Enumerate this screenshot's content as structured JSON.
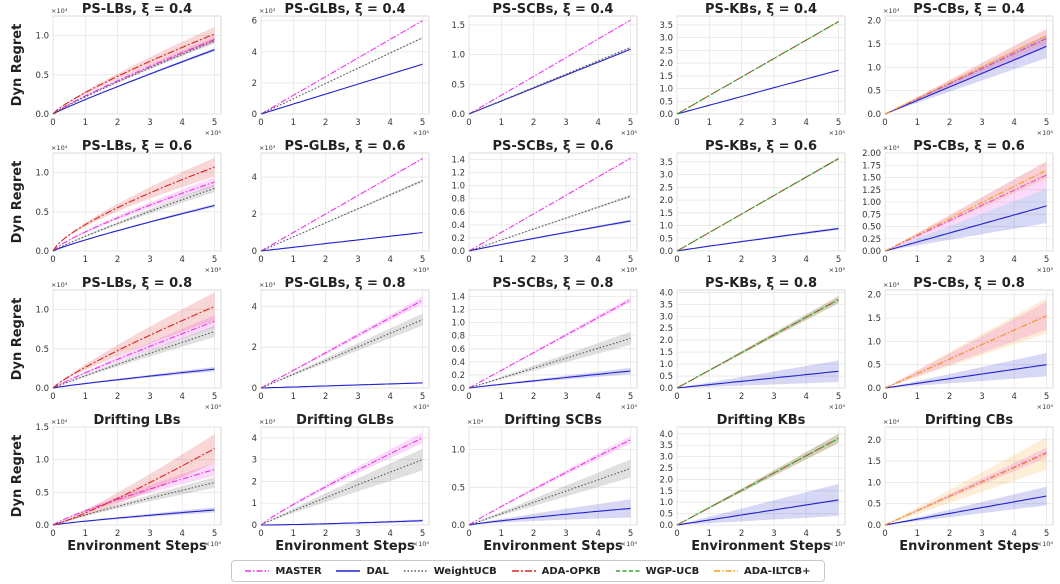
{
  "figure": {
    "row_ylabel": "Dyn Regret",
    "col_xlabel": "Environment Steps",
    "x_multiplier": "×10⁴"
  },
  "legend": [
    {
      "name": "MASTER",
      "color": "#ee33ee",
      "dash": "6,2,1.5,2"
    },
    {
      "name": "DAL",
      "color": "#2222cc",
      "dash": ""
    },
    {
      "name": "WeightUCB",
      "color": "#555555",
      "dash": "1.5,2"
    },
    {
      "name": "ADA-OPKB",
      "color": "#dd2222",
      "dash": "7,2,2,2"
    },
    {
      "name": "WGP-UCB",
      "color": "#33aa33",
      "dash": "4,2.5"
    },
    {
      "name": "ADA-ILTCB+",
      "color": "#f5a020",
      "dash": "6,2,1.5,2"
    }
  ],
  "chart_data": [
    {
      "type": "line",
      "title": "PS-LBs, ξ = 0.4",
      "ymult": "×10⁴",
      "ylim": [
        0,
        1.25
      ],
      "yticks": [
        "0.0",
        "0.5",
        "1.0"
      ],
      "ytickvals": [
        0,
        0.5,
        1.0
      ],
      "xlim": [
        0,
        5.2
      ],
      "xticks": [
        "0",
        "1",
        "2",
        "3",
        "4",
        "5"
      ],
      "series": [
        {
          "name": "MASTER",
          "shape": 0.88,
          "end": 0.95,
          "band": 0.04
        },
        {
          "name": "DAL",
          "shape": 0.93,
          "end": 0.82,
          "band": 0.02
        },
        {
          "name": "WeightUCB",
          "shape": 0.9,
          "end": 0.93,
          "band": 0.03
        },
        {
          "name": "ADA-OPKB",
          "shape": 0.82,
          "end": 1.02,
          "band": 0.09
        }
      ]
    },
    {
      "type": "line",
      "title": "PS-GLBs, ξ = 0.4",
      "ymult": "×10³",
      "ylim": [
        0,
        6.3
      ],
      "yticks": [
        "0",
        "2",
        "4",
        "6"
      ],
      "ytickvals": [
        0,
        2,
        4,
        6
      ],
      "xlim": [
        0,
        5.2
      ],
      "xticks": [
        "0",
        "1",
        "2",
        "3",
        "4",
        "5"
      ],
      "series": [
        {
          "name": "MASTER",
          "shape": 1.0,
          "end": 6.0,
          "band": 0.04
        },
        {
          "name": "DAL",
          "shape": 1.0,
          "end": 3.2,
          "band": 0.03
        },
        {
          "name": "WeightUCB",
          "shape": 1.0,
          "end": 4.9,
          "band": 0.05
        }
      ]
    },
    {
      "type": "line",
      "title": "PS-SCBs, ξ = 0.4",
      "ymult": "",
      "ylim": [
        0,
        1.65
      ],
      "yticks": [
        "0.0",
        "0.5",
        "1.0",
        "1.5"
      ],
      "ytickvals": [
        0,
        0.5,
        1.0,
        1.5
      ],
      "xlim": [
        0,
        5.2
      ],
      "xticks": [
        "0",
        "1",
        "2",
        "3",
        "4",
        "5"
      ],
      "series": [
        {
          "name": "MASTER",
          "shape": 1.0,
          "end": 1.58,
          "band": 0.01
        },
        {
          "name": "DAL",
          "shape": 1.0,
          "end": 1.09,
          "band": 0.01
        },
        {
          "name": "WeightUCB",
          "shape": 1.0,
          "end": 1.12,
          "band": 0.01
        }
      ]
    },
    {
      "type": "line",
      "title": "PS-KBs, ξ = 0.4",
      "ymult": "",
      "ylim": [
        0,
        3.85
      ],
      "yticks": [
        "0.0",
        "0.5",
        "1.0",
        "1.5",
        "2.0",
        "2.5",
        "3.0",
        "3.5"
      ],
      "ytickvals": [
        0,
        0.5,
        1.0,
        1.5,
        2.0,
        2.5,
        3.0,
        3.5
      ],
      "xlim": [
        0,
        5.2
      ],
      "xticks": [
        "0",
        "1",
        "2",
        "3",
        "4",
        "5"
      ],
      "series": [
        {
          "name": "DAL",
          "shape": 1.0,
          "end": 1.72,
          "band": 0.02
        },
        {
          "name": "ADA-OPKB",
          "shape": 1.0,
          "end": 3.63,
          "band": 0.03
        },
        {
          "name": "WGP-UCB",
          "shape": 1.0,
          "end": 3.63,
          "band": 0.03
        }
      ]
    },
    {
      "type": "line",
      "title": "PS-CBs, ξ = 0.4",
      "ymult": "×10⁴",
      "ylim": [
        0,
        2.1
      ],
      "yticks": [
        "0.0",
        "0.5",
        "1.0",
        "1.5",
        "2.0"
      ],
      "ytickvals": [
        0,
        0.5,
        1.0,
        1.5,
        2.0
      ],
      "xlim": [
        0,
        5.2
      ],
      "xticks": [
        "0",
        "1",
        "2",
        "3",
        "4",
        "5"
      ],
      "series": [
        {
          "name": "MASTER",
          "shape": 1.0,
          "end": 1.62,
          "band": 0.2
        },
        {
          "name": "DAL",
          "shape": 1.0,
          "end": 1.45,
          "band": 0.25
        },
        {
          "name": "ADA-ILTCB+",
          "shape": 1.0,
          "end": 1.68,
          "band": 0.15
        }
      ]
    },
    {
      "type": "line",
      "title": "PS-LBs, ξ = 0.6",
      "ymult": "×10⁴",
      "ylim": [
        0,
        1.25
      ],
      "yticks": [
        "0.0",
        "0.5",
        "1.0"
      ],
      "ytickvals": [
        0,
        0.5,
        1.0
      ],
      "xlim": [
        0,
        5.2
      ],
      "xticks": [
        "0",
        "1",
        "2",
        "3",
        "4",
        "5"
      ],
      "series": [
        {
          "name": "MASTER",
          "shape": 0.8,
          "end": 0.88,
          "band": 0.06
        },
        {
          "name": "DAL",
          "shape": 0.88,
          "end": 0.58,
          "band": 0.02
        },
        {
          "name": "WeightUCB",
          "shape": 0.9,
          "end": 0.8,
          "band": 0.05
        },
        {
          "name": "ADA-OPKB",
          "shape": 0.72,
          "end": 1.07,
          "band": 0.12
        }
      ]
    },
    {
      "type": "line",
      "title": "PS-GLBs, ξ = 0.6",
      "ymult": "×10³",
      "ylim": [
        0,
        5.3
      ],
      "yticks": [
        "0",
        "2",
        "4"
      ],
      "ytickvals": [
        0,
        2,
        4
      ],
      "xlim": [
        0,
        5.2
      ],
      "xticks": [
        "0",
        "1",
        "2",
        "3",
        "4",
        "5"
      ],
      "series": [
        {
          "name": "MASTER",
          "shape": 1.0,
          "end": 5.0,
          "band": 0.05
        },
        {
          "name": "DAL",
          "shape": 1.0,
          "end": 1.0,
          "band": 0.03
        },
        {
          "name": "WeightUCB",
          "shape": 1.0,
          "end": 3.8,
          "band": 0.08
        }
      ]
    },
    {
      "type": "line",
      "title": "PS-SCBs, ξ = 0.6",
      "ymult": "",
      "ylim": [
        0,
        1.5
      ],
      "yticks": [
        "0.0",
        "0.2",
        "0.4",
        "0.6",
        "0.8",
        "1.0",
        "1.2",
        "1.4"
      ],
      "ytickvals": [
        0,
        0.2,
        0.4,
        0.6,
        0.8,
        1.0,
        1.2,
        1.4
      ],
      "xlim": [
        0,
        5.2
      ],
      "xticks": [
        "0",
        "1",
        "2",
        "3",
        "4",
        "5"
      ],
      "series": [
        {
          "name": "MASTER",
          "shape": 1.0,
          "end": 1.42,
          "band": 0.01
        },
        {
          "name": "DAL",
          "shape": 0.95,
          "end": 0.46,
          "band": 0.02
        },
        {
          "name": "WeightUCB",
          "shape": 1.0,
          "end": 0.84,
          "band": 0.02
        }
      ]
    },
    {
      "type": "line",
      "title": "PS-KBs, ξ = 0.6",
      "ymult": "",
      "ylim": [
        0,
        3.85
      ],
      "yticks": [
        "0.0",
        "0.5",
        "1.0",
        "1.5",
        "2.0",
        "2.5",
        "3.0",
        "3.5"
      ],
      "ytickvals": [
        0,
        0.5,
        1.0,
        1.5,
        2.0,
        2.5,
        3.0,
        3.5
      ],
      "xlim": [
        0,
        5.2
      ],
      "xticks": [
        "0",
        "1",
        "2",
        "3",
        "4",
        "5"
      ],
      "series": [
        {
          "name": "DAL",
          "shape": 0.95,
          "end": 0.88,
          "band": 0.06
        },
        {
          "name": "ADA-OPKB",
          "shape": 1.0,
          "end": 3.63,
          "band": 0.04
        },
        {
          "name": "WGP-UCB",
          "shape": 1.0,
          "end": 3.63,
          "band": 0.04
        }
      ]
    },
    {
      "type": "line",
      "title": "PS-CBs, ξ = 0.6",
      "ymult": "×10⁴",
      "ylim": [
        0,
        2.0
      ],
      "yticks": [
        "0.00",
        "0.25",
        "0.50",
        "0.75",
        "1.00",
        "1.25",
        "1.50",
        "1.75",
        "2.00"
      ],
      "ytickvals": [
        0,
        0.25,
        0.5,
        0.75,
        1.0,
        1.25,
        1.5,
        1.75,
        2.0
      ],
      "xlim": [
        0,
        5.2
      ],
      "xticks": [
        "0",
        "1",
        "2",
        "3",
        "4",
        "5"
      ],
      "series": [
        {
          "name": "MASTER",
          "shape": 1.0,
          "end": 1.55,
          "band": 0.28
        },
        {
          "name": "DAL",
          "shape": 1.0,
          "end": 0.92,
          "band": 0.35
        },
        {
          "name": "ADA-ILTCB+",
          "shape": 1.0,
          "end": 1.65,
          "band": 0.18
        }
      ]
    },
    {
      "type": "line",
      "title": "PS-LBs, ξ = 0.8",
      "ymult": "×10⁴",
      "ylim": [
        0,
        1.25
      ],
      "yticks": [
        "0.0",
        "0.5",
        "1.0"
      ],
      "ytickvals": [
        0,
        0.5,
        1.0
      ],
      "xlim": [
        0,
        5.2
      ],
      "xticks": [
        "0",
        "1",
        "2",
        "3",
        "4",
        "5"
      ],
      "series": [
        {
          "name": "MASTER",
          "shape": 0.92,
          "end": 0.85,
          "band": 0.08
        },
        {
          "name": "DAL",
          "shape": 0.9,
          "end": 0.24,
          "band": 0.03
        },
        {
          "name": "WeightUCB",
          "shape": 0.95,
          "end": 0.72,
          "band": 0.07
        },
        {
          "name": "ADA-OPKB",
          "shape": 0.85,
          "end": 1.04,
          "band": 0.18
        }
      ]
    },
    {
      "type": "line",
      "title": "PS-GLBs, ξ = 0.8",
      "ymult": "×10³",
      "ylim": [
        0,
        4.8
      ],
      "yticks": [
        "0",
        "2",
        "4"
      ],
      "ytickvals": [
        0,
        2,
        4
      ],
      "xlim": [
        0,
        5.2
      ],
      "xticks": [
        "0",
        "1",
        "2",
        "3",
        "4",
        "5"
      ],
      "series": [
        {
          "name": "MASTER",
          "shape": 1.0,
          "end": 4.3,
          "band": 0.18
        },
        {
          "name": "DAL",
          "shape": 1.0,
          "end": 0.25,
          "band": 0.03
        },
        {
          "name": "WeightUCB",
          "shape": 1.0,
          "end": 3.35,
          "band": 0.3
        }
      ]
    },
    {
      "type": "line",
      "title": "PS-SCBs, ξ = 0.8",
      "ymult": "",
      "ylim": [
        0,
        1.5
      ],
      "yticks": [
        "0.0",
        "0.2",
        "0.4",
        "0.6",
        "0.8",
        "1.0",
        "1.2",
        "1.4"
      ],
      "ytickvals": [
        0,
        0.2,
        0.4,
        0.6,
        0.8,
        1.0,
        1.2,
        1.4
      ],
      "xlim": [
        0,
        5.2
      ],
      "xticks": [
        "0",
        "1",
        "2",
        "3",
        "4",
        "5"
      ],
      "series": [
        {
          "name": "MASTER",
          "shape": 1.0,
          "end": 1.35,
          "band": 0.04
        },
        {
          "name": "DAL",
          "shape": 0.95,
          "end": 0.26,
          "band": 0.05
        },
        {
          "name": "WeightUCB",
          "shape": 1.0,
          "end": 0.76,
          "band": 0.1
        }
      ]
    },
    {
      "type": "line",
      "title": "PS-KBs, ξ = 0.8",
      "ymult": "",
      "ylim": [
        0,
        4.1
      ],
      "yticks": [
        "0.0",
        "0.5",
        "1.0",
        "1.5",
        "2.0",
        "2.5",
        "3.0",
        "3.5",
        "4.0"
      ],
      "ytickvals": [
        0,
        0.5,
        1.0,
        1.5,
        2.0,
        2.5,
        3.0,
        3.5,
        4.0
      ],
      "xlim": [
        0,
        5.2
      ],
      "xticks": [
        "0",
        "1",
        "2",
        "3",
        "4",
        "5"
      ],
      "series": [
        {
          "name": "DAL",
          "shape": 1.0,
          "end": 0.7,
          "band": 0.45
        },
        {
          "name": "ADA-OPKB",
          "shape": 1.0,
          "end": 3.7,
          "band": 0.15
        },
        {
          "name": "WGP-UCB",
          "shape": 1.0,
          "end": 3.7,
          "band": 0.15
        }
      ]
    },
    {
      "type": "line",
      "title": "PS-CBs, ξ = 0.8",
      "ymult": "×10⁴",
      "ylim": [
        0,
        2.1
      ],
      "yticks": [
        "0.0",
        "0.5",
        "1.0",
        "1.5",
        "2.0"
      ],
      "ytickvals": [
        0,
        0.5,
        1.0,
        1.5,
        2.0
      ],
      "xlim": [
        0,
        5.2
      ],
      "xticks": [
        "0",
        "1",
        "2",
        "3",
        "4",
        "5"
      ],
      "series": [
        {
          "name": "MASTER",
          "shape": 1.0,
          "end": 1.55,
          "band": 0.3
        },
        {
          "name": "DAL",
          "shape": 1.0,
          "end": 0.5,
          "band": 0.25
        },
        {
          "name": "ADA-ILTCB+",
          "shape": 1.0,
          "end": 1.55,
          "band": 0.38
        }
      ]
    },
    {
      "type": "line",
      "title": "Drifting LBs",
      "ymult": "×10⁴",
      "ylim": [
        0,
        1.5
      ],
      "yticks": [
        "0.0",
        "0.5",
        "1.0",
        "1.5"
      ],
      "ytickvals": [
        0,
        0.5,
        1.0,
        1.5
      ],
      "xlim": [
        0,
        5.2
      ],
      "xticks": [
        "0",
        "1",
        "2",
        "3",
        "4",
        "5"
      ],
      "series": [
        {
          "name": "MASTER",
          "shape": 0.85,
          "end": 0.85,
          "band": 0.1
        },
        {
          "name": "DAL",
          "shape": 0.85,
          "end": 0.23,
          "band": 0.04
        },
        {
          "name": "WeightUCB",
          "shape": 0.9,
          "end": 0.65,
          "band": 0.08
        },
        {
          "name": "ADA-OPKB",
          "shape": 1.15,
          "end": 1.17,
          "band": 0.22
        }
      ]
    },
    {
      "type": "line",
      "title": "Drifting GLBs",
      "ymult": "×10³",
      "ylim": [
        0,
        4.5
      ],
      "yticks": [
        "0",
        "1",
        "2",
        "3",
        "4"
      ],
      "ytickvals": [
        0,
        1,
        2,
        3,
        4
      ],
      "xlim": [
        0,
        5.2
      ],
      "xticks": [
        "0",
        "1",
        "2",
        "3",
        "4",
        "5"
      ],
      "series": [
        {
          "name": "MASTER",
          "shape": 0.9,
          "end": 4.0,
          "band": 0.25
        },
        {
          "name": "DAL",
          "shape": 1.4,
          "end": 0.2,
          "band": 0.06
        },
        {
          "name": "WeightUCB",
          "shape": 0.95,
          "end": 3.0,
          "band": 0.5
        }
      ]
    },
    {
      "type": "line",
      "title": "Drifting SCBs",
      "ymult": "×10⁴",
      "ylim": [
        0,
        1.3
      ],
      "yticks": [
        "0.0",
        "0.5",
        "1.0"
      ],
      "ytickvals": [
        0,
        0.5,
        1.0
      ],
      "xlim": [
        0,
        5.2
      ],
      "xticks": [
        "0",
        "1",
        "2",
        "3",
        "4",
        "5"
      ],
      "series": [
        {
          "name": "MASTER",
          "shape": 0.95,
          "end": 1.13,
          "band": 0.05
        },
        {
          "name": "DAL",
          "shape": 0.85,
          "end": 0.22,
          "band": 0.12
        },
        {
          "name": "WeightUCB",
          "shape": 1.0,
          "end": 0.75,
          "band": 0.12
        }
      ]
    },
    {
      "type": "line",
      "title": "Drifting KBs",
      "ymult": "",
      "ylim": [
        0,
        4.3
      ],
      "yticks": [
        "0.0",
        "0.5",
        "1.0",
        "1.5",
        "2.0",
        "2.5",
        "3.0",
        "3.5",
        "4.0"
      ],
      "ytickvals": [
        0,
        0.5,
        1.0,
        1.5,
        2.0,
        2.5,
        3.0,
        3.5,
        4.0
      ],
      "xlim": [
        0,
        5.2
      ],
      "xticks": [
        "0",
        "1",
        "2",
        "3",
        "4",
        "5"
      ],
      "series": [
        {
          "name": "DAL",
          "shape": 1.0,
          "end": 1.1,
          "band": 0.7
        },
        {
          "name": "ADA-OPKB",
          "shape": 1.0,
          "end": 3.8,
          "band": 0.2
        },
        {
          "name": "WGP-UCB",
          "shape": 1.0,
          "end": 3.8,
          "band": 0.2
        }
      ]
    },
    {
      "type": "line",
      "title": "Drifting CBs",
      "ymult": "×10⁴",
      "ylim": [
        0,
        2.3
      ],
      "yticks": [
        "0.0",
        "0.5",
        "1.0",
        "1.5",
        "2.0"
      ],
      "ytickvals": [
        0,
        0.5,
        1.0,
        1.5,
        2.0
      ],
      "xlim": [
        0,
        5.2
      ],
      "xticks": [
        "0",
        "1",
        "2",
        "3",
        "4",
        "5"
      ],
      "series": [
        {
          "name": "MASTER",
          "shape": 1.0,
          "end": 1.7,
          "band": 0.12
        },
        {
          "name": "DAL",
          "shape": 1.0,
          "end": 0.68,
          "band": 0.22
        },
        {
          "name": "ADA-ILTCB+",
          "shape": 1.0,
          "end": 1.68,
          "band": 0.38
        }
      ]
    }
  ]
}
